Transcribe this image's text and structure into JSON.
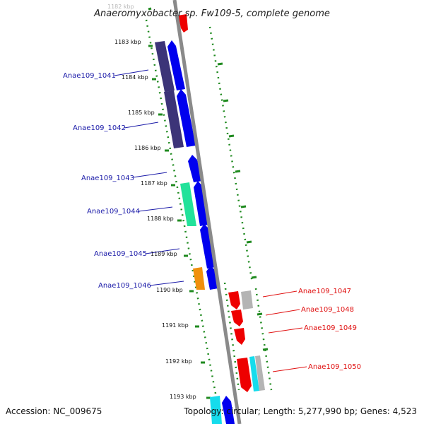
{
  "title": "Anaeromyxobacter sp. Fw109-5, complete genome",
  "footer": {
    "accession": "Accession: NC_009675",
    "topology": "Topology: circular; Length: 5,277,990 bp; Genes: 4,523"
  },
  "ticks": [
    {
      "label": "1182 kbp",
      "faint": true
    },
    {
      "label": "1183 kbp"
    },
    {
      "label": "1184 kbp"
    },
    {
      "label": "1185 kbp"
    },
    {
      "label": "1186 kbp"
    },
    {
      "label": "1187 kbp"
    },
    {
      "label": "1188 kbp"
    },
    {
      "label": "1189 kbp"
    },
    {
      "label": "1190 kbp"
    },
    {
      "label": "1191 kbp"
    },
    {
      "label": "1192 kbp"
    },
    {
      "label": "1193 kbp"
    }
  ],
  "gene_labels": {
    "forward": [
      "Anae109_1041",
      "Anae109_1042",
      "Anae109_1043",
      "Anae109_1044",
      "Anae109_1045",
      "Anae109_1046"
    ],
    "reverse": [
      "Anae109_1047",
      "Anae109_1048",
      "Anae109_1049",
      "Anae109_1050"
    ]
  },
  "colors": {
    "forward_gene": "#0000ee",
    "reverse_gene": "#ee0000",
    "cog_dark_blue": "#3c3478",
    "cog_green": "#22e29a",
    "cog_orange": "#f0900c",
    "cog_gray": "#b4b4b4",
    "cog_cyan": "#16dcec",
    "guide_dots": "#1f8a1f",
    "backbone": "#8a8a8a"
  }
}
